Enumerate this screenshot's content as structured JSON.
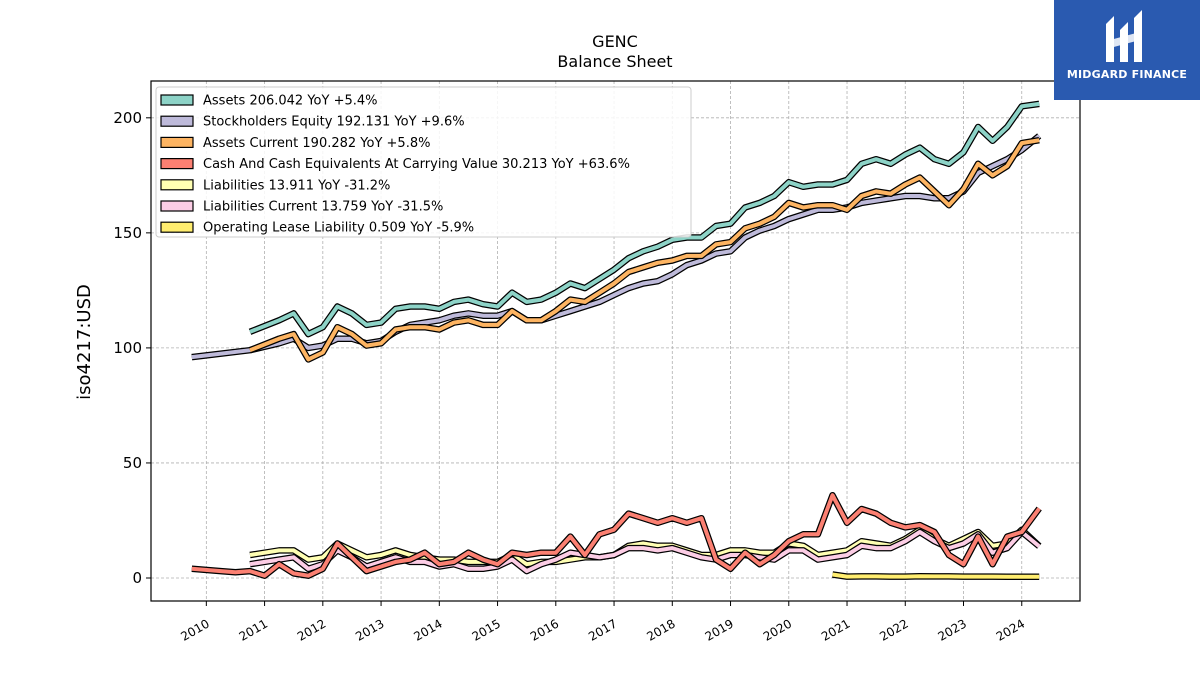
{
  "logo": {
    "name": "MIDGARD FINANCE"
  },
  "chart_data": {
    "type": "line",
    "title": "GENC",
    "subtitle": "Balance  Sheet",
    "xlabel": "",
    "ylabel": "iso4217:USD",
    "xlim": [
      2009.05,
      2025.0
    ],
    "ylim": [
      -10,
      216
    ],
    "yticks": [
      0,
      50,
      100,
      150,
      200
    ],
    "xticks": [
      "2010",
      "2011",
      "2012",
      "2013",
      "2014",
      "2015",
      "2016",
      "2017",
      "2018",
      "2019",
      "2020",
      "2021",
      "2022",
      "2023",
      "2024"
    ],
    "grid": true,
    "legend_position": "top-left",
    "colors": {
      "assets": "#8dd3c7",
      "equity": "#bebada",
      "assets_current": "#fdb462",
      "cash": "#fb8072",
      "liabilities": "#ffffb3",
      "liabilities_current": "#fccde5",
      "lease": "#ffed6f"
    },
    "series": [
      {
        "key": "assets",
        "name": "Assets",
        "legend": "Assets  206.042 YoY +5.4%",
        "x": [
          2010.75,
          2011.25,
          2011.5,
          2011.75,
          2012.0,
          2012.25,
          2012.5,
          2012.75,
          2013.0,
          2013.25,
          2013.5,
          2013.75,
          2014.0,
          2014.25,
          2014.5,
          2014.75,
          2015.0,
          2015.25,
          2015.5,
          2015.75,
          2016.0,
          2016.25,
          2016.5,
          2016.75,
          2017.0,
          2017.25,
          2017.5,
          2017.75,
          2018.0,
          2018.25,
          2018.5,
          2018.75,
          2019.0,
          2019.25,
          2019.5,
          2019.75,
          2020.0,
          2020.25,
          2020.5,
          2020.75,
          2021.0,
          2021.25,
          2021.5,
          2021.75,
          2022.0,
          2022.25,
          2022.5,
          2022.75,
          2023.0,
          2023.25,
          2023.5,
          2023.75,
          2024.0,
          2024.3
        ],
        "values": [
          107,
          112,
          115,
          106,
          109,
          118,
          115,
          110,
          111,
          117,
          118,
          118,
          117,
          120,
          121,
          119,
          118,
          124,
          120,
          121,
          124,
          128,
          126,
          130,
          134,
          139,
          142,
          144,
          147,
          148,
          148,
          153,
          154,
          161,
          163,
          166,
          172,
          170,
          171,
          171,
          173,
          180,
          182,
          180,
          184,
          187,
          182,
          180,
          185,
          196,
          190,
          196,
          205,
          206.042
        ]
      },
      {
        "key": "equity",
        "name": "Stockholders Equity",
        "legend": "Stockholders Equity  192.131 YoY +9.6%",
        "x": [
          2009.75,
          2010.75,
          2011.25,
          2011.5,
          2011.75,
          2012.0,
          2012.25,
          2012.5,
          2012.75,
          2013.0,
          2013.25,
          2013.5,
          2013.75,
          2014.0,
          2014.25,
          2014.5,
          2014.75,
          2015.0,
          2015.25,
          2015.5,
          2015.75,
          2016.0,
          2016.25,
          2016.5,
          2016.75,
          2017.0,
          2017.25,
          2017.5,
          2017.75,
          2018.0,
          2018.25,
          2018.5,
          2018.75,
          2019.0,
          2019.25,
          2019.5,
          2019.75,
          2020.0,
          2020.25,
          2020.5,
          2020.75,
          2021.0,
          2021.25,
          2021.5,
          2021.75,
          2022.0,
          2022.25,
          2022.5,
          2022.75,
          2023.0,
          2023.25,
          2023.5,
          2023.75,
          2024.0,
          2024.3
        ],
        "values": [
          96,
          99,
          102,
          104,
          100,
          101,
          104,
          104,
          102,
          103,
          107,
          110,
          111,
          112,
          114,
          115,
          114,
          114,
          116,
          112,
          112,
          114,
          116,
          118,
          120,
          123,
          126,
          128,
          129,
          132,
          136,
          138,
          141,
          142,
          148,
          151,
          153,
          156,
          158,
          160,
          160,
          161,
          163,
          164,
          165,
          166,
          166,
          165,
          165,
          168,
          176,
          179,
          182,
          186,
          192.131
        ]
      },
      {
        "key": "assets_current",
        "name": "Assets Current",
        "legend": "Assets Current  190.282 YoY +5.8%",
        "x": [
          2010.75,
          2011.25,
          2011.5,
          2011.75,
          2012.0,
          2012.25,
          2012.5,
          2012.75,
          2013.0,
          2013.25,
          2013.5,
          2013.75,
          2014.0,
          2014.25,
          2014.5,
          2014.75,
          2015.0,
          2015.25,
          2015.5,
          2015.75,
          2016.0,
          2016.25,
          2016.5,
          2016.75,
          2017.0,
          2017.25,
          2017.5,
          2017.75,
          2018.0,
          2018.25,
          2018.5,
          2018.75,
          2019.0,
          2019.25,
          2019.5,
          2019.75,
          2020.0,
          2020.25,
          2020.5,
          2020.75,
          2021.0,
          2021.25,
          2021.5,
          2021.75,
          2022.0,
          2022.25,
          2022.5,
          2022.75,
          2023.0,
          2023.25,
          2023.5,
          2023.75,
          2024.0,
          2024.3
        ],
        "values": [
          99,
          104,
          106,
          95,
          98,
          109,
          106,
          101,
          102,
          108,
          109,
          109,
          108,
          111,
          112,
          110,
          110,
          116,
          112,
          112,
          116,
          121,
          120,
          124,
          128,
          133,
          135,
          137,
          138,
          140,
          140,
          145,
          146,
          152,
          154,
          157,
          163,
          161,
          162,
          162,
          160,
          166,
          168,
          167,
          171,
          174,
          168,
          162,
          169,
          180,
          175,
          179,
          189,
          190.282
        ]
      },
      {
        "key": "cash",
        "name": "Cash And Cash Equivalents At Carrying Value",
        "legend": "Cash And Cash Equivalents At Carrying Value  30.213 YoY +63.6%",
        "x": [
          2009.75,
          2010.25,
          2010.5,
          2010.75,
          2011.0,
          2011.25,
          2011.5,
          2011.75,
          2012.0,
          2012.25,
          2012.5,
          2012.75,
          2013.0,
          2013.25,
          2013.5,
          2013.75,
          2014.0,
          2014.25,
          2014.5,
          2014.75,
          2015.0,
          2015.25,
          2015.5,
          2015.75,
          2016.0,
          2016.25,
          2016.5,
          2016.75,
          2017.0,
          2017.25,
          2017.5,
          2017.75,
          2018.0,
          2018.25,
          2018.5,
          2018.75,
          2019.0,
          2019.25,
          2019.5,
          2019.75,
          2020.0,
          2020.25,
          2020.5,
          2020.75,
          2021.0,
          2021.25,
          2021.5,
          2021.75,
          2022.0,
          2022.25,
          2022.5,
          2022.75,
          2023.0,
          2023.25,
          2023.5,
          2023.75,
          2024.0,
          2024.3
        ],
        "values": [
          4,
          3,
          2.5,
          3,
          1,
          6,
          2,
          1,
          4,
          15,
          9,
          3,
          5,
          7,
          8,
          11,
          6,
          7,
          11,
          8,
          6,
          11,
          10,
          11,
          11,
          18,
          10,
          19,
          21,
          28,
          26,
          24,
          26,
          24,
          26,
          8,
          4,
          11,
          6,
          10,
          16,
          19,
          19,
          36,
          24,
          30,
          28,
          24,
          22,
          23,
          20,
          10,
          6,
          18,
          6,
          18,
          20,
          30.213
        ]
      },
      {
        "key": "liabilities",
        "name": "Liabilities",
        "legend": "Liabilities  13.911 YoY -31.2%",
        "x": [
          2010.75,
          2011.25,
          2011.5,
          2011.75,
          2012.0,
          2012.25,
          2012.5,
          2012.75,
          2013.0,
          2013.25,
          2013.5,
          2013.75,
          2014.0,
          2014.25,
          2014.5,
          2014.75,
          2015.0,
          2015.25,
          2015.5,
          2015.75,
          2016.0,
          2016.25,
          2016.5,
          2016.75,
          2017.0,
          2017.25,
          2017.5,
          2017.75,
          2018.0,
          2018.25,
          2018.5,
          2018.75,
          2019.0,
          2019.25,
          2019.5,
          2019.75,
          2020.0,
          2020.25,
          2020.5,
          2020.75,
          2021.0,
          2021.25,
          2021.5,
          2021.75,
          2022.0,
          2022.25,
          2022.5,
          2022.75,
          2023.0,
          2023.25,
          2023.5,
          2023.75,
          2024.0,
          2024.3
        ],
        "values": [
          10,
          12,
          12,
          8,
          9,
          15,
          12,
          9,
          10,
          12,
          10,
          9,
          8,
          8,
          7,
          7,
          7,
          10,
          6,
          7,
          7,
          8,
          9,
          9,
          10,
          14,
          15,
          14,
          14,
          12,
          10,
          10,
          12,
          12,
          11,
          11,
          15,
          14,
          10,
          11,
          12,
          16,
          15,
          14,
          17,
          21,
          17,
          14,
          17,
          20,
          14,
          15,
          21,
          13.911
        ]
      },
      {
        "key": "liabilities_current",
        "name": "Liabilities Current",
        "legend": "Liabilities Current  13.759 YoY -31.5%",
        "x": [
          2010.75,
          2011.25,
          2011.5,
          2011.75,
          2012.0,
          2012.25,
          2012.5,
          2012.75,
          2013.0,
          2013.25,
          2013.5,
          2013.75,
          2014.0,
          2014.25,
          2014.5,
          2014.75,
          2015.0,
          2015.25,
          2015.5,
          2015.75,
          2016.0,
          2016.25,
          2016.5,
          2016.75,
          2017.0,
          2017.25,
          2017.5,
          2017.75,
          2018.0,
          2018.25,
          2018.5,
          2018.75,
          2019.0,
          2019.25,
          2019.5,
          2019.75,
          2020.0,
          2020.25,
          2020.5,
          2020.75,
          2021.0,
          2021.25,
          2021.5,
          2021.75,
          2022.0,
          2022.25,
          2022.5,
          2022.75,
          2023.0,
          2023.25,
          2023.5,
          2023.75,
          2024.0,
          2024.3
        ],
        "values": [
          6,
          8,
          9,
          4,
          6,
          12,
          9,
          5,
          7,
          9,
          7,
          7,
          5,
          6,
          4,
          4,
          5,
          8,
          3,
          6,
          8,
          11,
          10,
          9,
          10,
          13,
          13,
          12,
          13,
          11,
          9,
          8,
          10,
          10,
          9,
          8,
          12,
          12,
          8,
          9,
          10,
          14,
          13,
          13,
          16,
          20,
          16,
          13,
          15,
          19,
          11,
          13,
          20,
          13.759
        ]
      },
      {
        "key": "lease",
        "name": "Operating Lease Liability",
        "legend": "Operating Lease Liability  0.509 YoY -5.9%",
        "x": [
          2020.75,
          2021.0,
          2021.25,
          2021.5,
          2021.75,
          2022.0,
          2022.25,
          2022.5,
          2022.75,
          2023.0,
          2023.25,
          2023.5,
          2023.75,
          2024.0,
          2024.3
        ],
        "values": [
          1.5,
          0.6,
          0.7,
          0.7,
          0.6,
          0.6,
          0.8,
          0.7,
          0.7,
          0.6,
          0.6,
          0.6,
          0.5,
          0.5,
          0.509
        ]
      }
    ]
  }
}
